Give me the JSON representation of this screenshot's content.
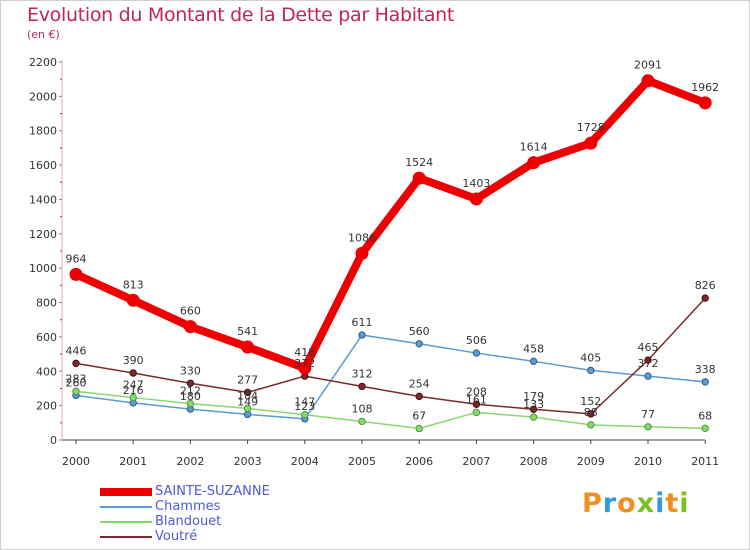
{
  "title": "Evolution du Montant de la Dette par Habitant",
  "subtitle": "(en €)",
  "logo": {
    "text": "Proxiti",
    "letters": [
      {
        "ch": "P",
        "color": "#f09020"
      },
      {
        "ch": "r",
        "color": "#2f9be0"
      },
      {
        "ch": "o",
        "color": "#f09020"
      },
      {
        "ch": "x",
        "color": "#7cc11f"
      },
      {
        "ch": "i",
        "color": "#2f9be0"
      },
      {
        "ch": "t",
        "color": "#f09020"
      },
      {
        "ch": "i",
        "color": "#7cc11f"
      }
    ]
  },
  "chart_data": {
    "type": "line",
    "title": "Evolution du Montant de la Dette par Habitant",
    "subtitle": "(en €)",
    "xlabel": "",
    "ylabel": "",
    "x": [
      "2000",
      "2001",
      "2002",
      "2003",
      "2004",
      "2005",
      "2006",
      "2007",
      "2008",
      "2009",
      "2010",
      "2011"
    ],
    "ylim": [
      0,
      2200
    ],
    "yticks": [
      0,
      200,
      400,
      600,
      800,
      1000,
      1200,
      1400,
      1600,
      1800,
      2000,
      2200
    ],
    "grid": false,
    "legend": "bottom-left",
    "series": [
      {
        "name": "SAINTE-SUZANNE",
        "color": "#ee0000",
        "values": [
          964,
          813,
          660,
          541,
          418,
          1086,
          1524,
          1403,
          1614,
          1728,
          2091,
          1962
        ]
      },
      {
        "name": "Chammes",
        "color": "#5a9bd0",
        "values": [
          260,
          216,
          180,
          149,
          123,
          611,
          560,
          506,
          458,
          405,
          372,
          338
        ]
      },
      {
        "name": "Blandouet",
        "color": "#88d870",
        "values": [
          283,
          247,
          212,
          184,
          147,
          108,
          67,
          161,
          133,
          88,
          77,
          68
        ]
      },
      {
        "name": "Voutré",
        "color": "#7a2a2a",
        "values": [
          446,
          390,
          330,
          277,
          372,
          312,
          254,
          208,
          179,
          152,
          465,
          826
        ]
      }
    ]
  }
}
